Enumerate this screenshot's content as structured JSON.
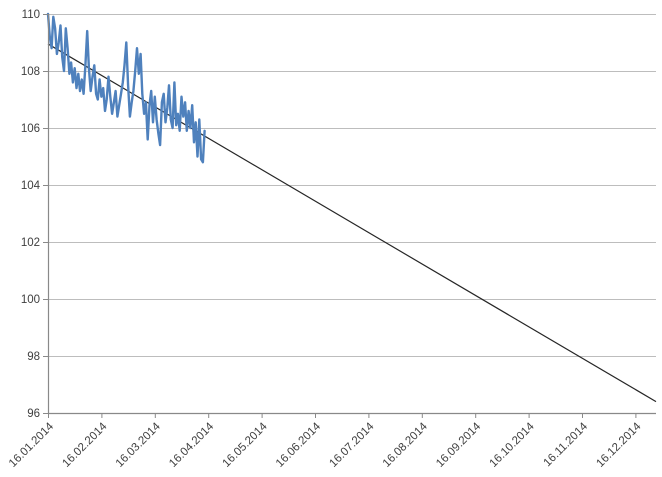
{
  "chart_data": {
    "type": "line",
    "title": "",
    "xlabel": "",
    "ylabel": "",
    "ylim": [
      96,
      110
    ],
    "y_ticks": [
      96,
      98,
      100,
      102,
      104,
      106,
      108,
      110
    ],
    "x_tick_labels": [
      "16.01.2014",
      "16.02.2014",
      "16.03.2014",
      "16.04.2014",
      "16.05.2014",
      "16.06.2014",
      "16.07.2014",
      "16.08.2014",
      "16.09.2014",
      "16.10.2014",
      "16.11.2014",
      "16.12.2014"
    ],
    "gridlines": "horizontal",
    "legend_position": "none",
    "series": [
      {
        "name": "daily-values",
        "color": "#4F81BD",
        "interval": "daily",
        "start_label": "16.01.2014",
        "end_label": "14.04.2014",
        "values": [
          110.0,
          109.2,
          108.8,
          109.9,
          109.5,
          108.6,
          109.0,
          109.6,
          108.5,
          108.0,
          109.5,
          108.8,
          107.9,
          108.3,
          107.6,
          108.1,
          107.4,
          107.9,
          107.3,
          107.7,
          107.2,
          108.2,
          109.4,
          108.1,
          107.3,
          107.8,
          108.2,
          107.2,
          107.0,
          107.7,
          107.1,
          107.4,
          106.6,
          107.0,
          107.8,
          107.1,
          106.5,
          106.9,
          107.3,
          106.4,
          106.8,
          107.2,
          107.6,
          108.2,
          109.0,
          107.5,
          106.4,
          106.9,
          107.3,
          108.0,
          108.8,
          107.9,
          108.6,
          107.2,
          106.5,
          106.9,
          105.6,
          106.8,
          107.3,
          106.2,
          107.1,
          106.3,
          105.8,
          105.4,
          106.9,
          107.2,
          106.2,
          106.7,
          107.5,
          106.3,
          106.0,
          107.6,
          106.1,
          106.5,
          105.9,
          107.1,
          106.4,
          106.9,
          105.9,
          106.6,
          106.0,
          106.8,
          105.5,
          106.2,
          105.0,
          106.3,
          104.9,
          104.8,
          105.9
        ]
      }
    ],
    "trendline": {
      "name": "linear-trendline",
      "color": "#262626",
      "start_value": 108.95,
      "end_value": 96.4,
      "extent": "full-x-axis"
    },
    "colors": {
      "series_blue": "#4F81BD",
      "trendline": "#262626",
      "gridline": "#BDBDBD",
      "axis": "#898989",
      "tick_label": "#3F3F3F",
      "background": "#FFFFFF"
    }
  }
}
